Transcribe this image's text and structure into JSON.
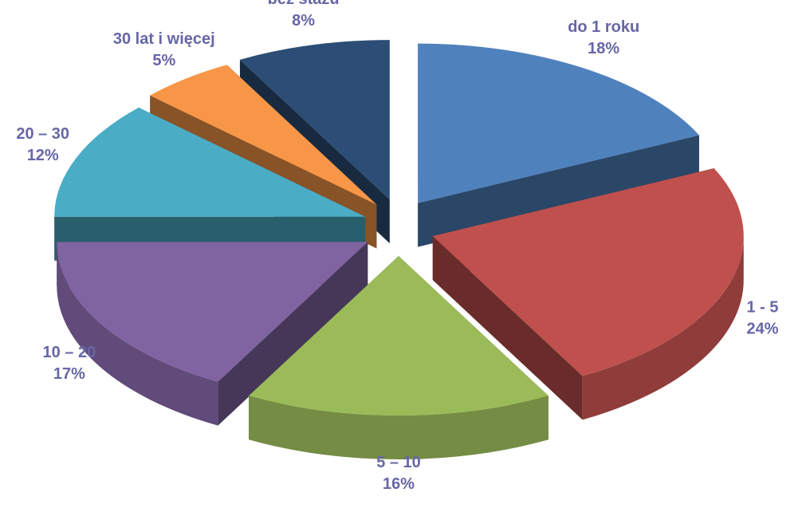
{
  "chart_data": {
    "type": "pie",
    "categories": [
      "do 1 roku",
      "1 - 5",
      "5 – 10",
      "10 – 20",
      "20 – 30",
      "30 lat i więcej",
      "bez stażu"
    ],
    "values": [
      18,
      24,
      16,
      17,
      12,
      5,
      8
    ],
    "value_labels": [
      "18%",
      "24%",
      "16%",
      "17%",
      "12%",
      "5%",
      "8%"
    ],
    "colors": [
      "#4f81bd",
      "#c0504d",
      "#9bbb59",
      "#8064a2",
      "#4bacc6",
      "#f79646",
      "#2c4d75"
    ]
  }
}
